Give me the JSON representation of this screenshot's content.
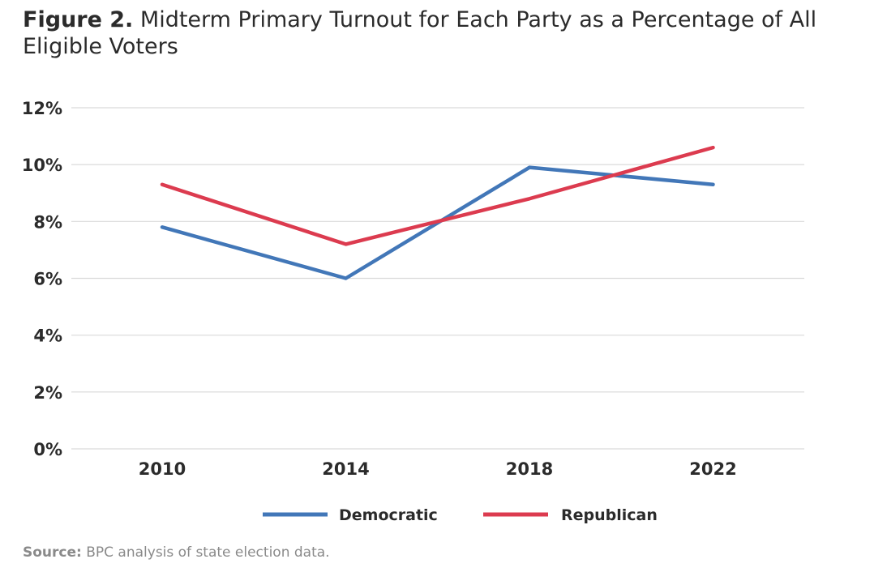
{
  "title": {
    "figure_label": "Figure 2.",
    "text": " Midterm Primary Turnout for Each Party as a Percentage of All Eligible Voters"
  },
  "source": {
    "label": "Source:",
    "text": " BPC analysis of state election data."
  },
  "colors": {
    "democratic": "#4277b8",
    "republican": "#dc3b4f",
    "grid": "#d9d9d9",
    "text": "#2b2b2b"
  },
  "chart_data": {
    "type": "line",
    "title": "Midterm Primary Turnout for Each Party as a Percentage of All Eligible Voters",
    "xlabel": "",
    "ylabel": "",
    "categories": [
      "2010",
      "2014",
      "2018",
      "2022"
    ],
    "y_ticks": [
      "0%",
      "2%",
      "4%",
      "6%",
      "8%",
      "10%",
      "12%"
    ],
    "ylim": [
      0,
      12
    ],
    "grid": true,
    "legend_position": "bottom",
    "series": [
      {
        "name": "Democratic",
        "color": "#4277b8",
        "values": [
          7.8,
          6.0,
          9.9,
          9.3
        ]
      },
      {
        "name": "Republican",
        "color": "#dc3b4f",
        "values": [
          9.3,
          7.2,
          8.8,
          10.6
        ]
      }
    ]
  }
}
